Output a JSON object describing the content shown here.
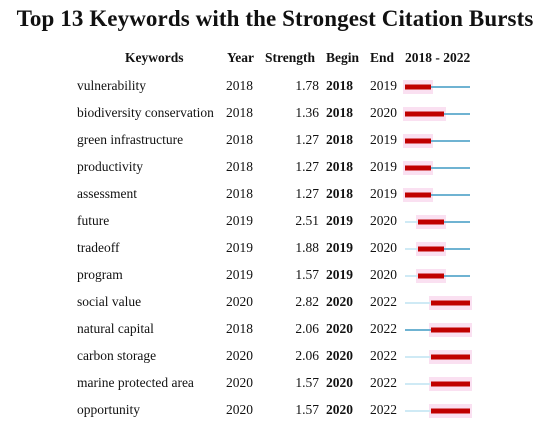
{
  "title": "Top 13 Keywords with the Strongest Citation Bursts",
  "headers": {
    "keywords": "Keywords",
    "year": "Year",
    "strength": "Strength",
    "begin": "Begin",
    "end": "End",
    "range": "2018 - 2022"
  },
  "chart_data": {
    "type": "table",
    "timeline": {
      "start": 2018,
      "end": 2022
    },
    "colors": {
      "burst": "#c00000",
      "burst_dark": "#8b1a1a",
      "timeline": "#6fb3d2",
      "pre_timeline": "#cfeaf5",
      "highlight": "#f6c6e6"
    },
    "rows": [
      {
        "keyword": "vulnerability",
        "year": "2018",
        "strength": "1.78",
        "begin": "2018",
        "end": "2019"
      },
      {
        "keyword": "biodiversity conservation",
        "year": "2018",
        "strength": "1.36",
        "begin": "2018",
        "end": "2020"
      },
      {
        "keyword": "green infrastructure",
        "year": "2018",
        "strength": "1.27",
        "begin": "2018",
        "end": "2019"
      },
      {
        "keyword": "productivity",
        "year": "2018",
        "strength": "1.27",
        "begin": "2018",
        "end": "2019"
      },
      {
        "keyword": "assessment",
        "year": "2018",
        "strength": "1.27",
        "begin": "2018",
        "end": "2019"
      },
      {
        "keyword": "future",
        "year": "2019",
        "strength": "2.51",
        "begin": "2019",
        "end": "2020"
      },
      {
        "keyword": "tradeoff",
        "year": "2019",
        "strength": "1.88",
        "begin": "2019",
        "end": "2020"
      },
      {
        "keyword": "program",
        "year": "2019",
        "strength": "1.57",
        "begin": "2019",
        "end": "2020"
      },
      {
        "keyword": "social value",
        "year": "2020",
        "strength": "2.82",
        "begin": "2020",
        "end": "2022"
      },
      {
        "keyword": "natural capital",
        "year": "2018",
        "strength": "2.06",
        "begin": "2020",
        "end": "2022"
      },
      {
        "keyword": "carbon storage",
        "year": "2020",
        "strength": "2.06",
        "begin": "2020",
        "end": "2022"
      },
      {
        "keyword": "marine protected area",
        "year": "2020",
        "strength": "1.57",
        "begin": "2020",
        "end": "2022"
      },
      {
        "keyword": "opportunity",
        "year": "2020",
        "strength": "1.57",
        "begin": "2020",
        "end": "2022"
      }
    ]
  }
}
